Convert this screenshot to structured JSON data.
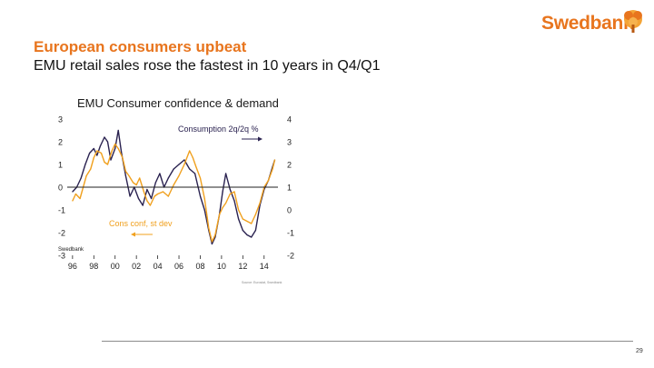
{
  "brand": {
    "name": "Swedbank",
    "color": "#e8751e"
  },
  "slide": {
    "title": "European consumers upbeat",
    "subtitle": "EMU retail sales rose the fastest in 10 years in Q4/Q1",
    "page_number": "29"
  },
  "chart_data": {
    "type": "line",
    "title": "EMU Consumer confidence & demand",
    "source_logo_text": "Swedbank",
    "source_note": "Source: Eurostat, Swedbank",
    "x_tick_labels": [
      "96",
      "98",
      "00",
      "02",
      "04",
      "06",
      "08",
      "10",
      "12",
      "14"
    ],
    "x_range": [
      1995.5,
      2015.3
    ],
    "y_left": {
      "label": "Cons conf, st dev",
      "range": [
        -3,
        3
      ],
      "ticks": [
        "3",
        "2",
        "1",
        "0",
        "-1",
        "-2",
        "-3"
      ]
    },
    "y_right": {
      "label": "Consumption 2q/2q %",
      "range": [
        -2,
        4
      ],
      "ticks": [
        "4",
        "3",
        "2",
        "1",
        "0",
        "-1",
        "-2"
      ]
    },
    "zero_line": 0,
    "series": [
      {
        "name": "Consumption 2q/2q %",
        "axis": "right",
        "color": "#2a2250",
        "points": [
          [
            1996.0,
            0.8
          ],
          [
            1996.4,
            1.0
          ],
          [
            1996.8,
            1.4
          ],
          [
            1997.2,
            2.0
          ],
          [
            1997.6,
            2.5
          ],
          [
            1998.0,
            2.7
          ],
          [
            1998.3,
            2.4
          ],
          [
            1998.6,
            2.8
          ],
          [
            1999.0,
            3.2
          ],
          [
            1999.3,
            3.0
          ],
          [
            1999.6,
            2.2
          ],
          [
            2000.0,
            2.7
          ],
          [
            2000.3,
            3.5
          ],
          [
            2000.6,
            2.5
          ],
          [
            2001.0,
            1.5
          ],
          [
            2001.4,
            0.6
          ],
          [
            2001.8,
            1.0
          ],
          [
            2002.2,
            0.5
          ],
          [
            2002.6,
            0.2
          ],
          [
            2003.0,
            0.9
          ],
          [
            2003.4,
            0.5
          ],
          [
            2003.8,
            1.2
          ],
          [
            2004.2,
            1.6
          ],
          [
            2004.6,
            1.0
          ],
          [
            2005.0,
            1.4
          ],
          [
            2005.5,
            1.8
          ],
          [
            2006.0,
            2.0
          ],
          [
            2006.5,
            2.2
          ],
          [
            2007.0,
            1.8
          ],
          [
            2007.5,
            1.6
          ],
          [
            2008.0,
            0.6
          ],
          [
            2008.4,
            0.0
          ],
          [
            2008.8,
            -0.9
          ],
          [
            2009.1,
            -1.5
          ],
          [
            2009.4,
            -1.2
          ],
          [
            2009.8,
            -0.2
          ],
          [
            2010.1,
            0.8
          ],
          [
            2010.4,
            1.6
          ],
          [
            2010.8,
            0.9
          ],
          [
            2011.2,
            0.4
          ],
          [
            2011.6,
            -0.4
          ],
          [
            2012.0,
            -0.9
          ],
          [
            2012.4,
            -1.1
          ],
          [
            2012.8,
            -1.2
          ],
          [
            2013.2,
            -0.9
          ],
          [
            2013.6,
            0.2
          ],
          [
            2014.0,
            0.9
          ],
          [
            2014.4,
            1.3
          ],
          [
            2014.8,
            1.9
          ],
          [
            2015.0,
            2.2
          ]
        ]
      },
      {
        "name": "Cons conf, st dev",
        "axis": "left",
        "color": "#f0a01e",
        "points": [
          [
            1996.0,
            -0.6
          ],
          [
            1996.3,
            -0.3
          ],
          [
            1996.7,
            -0.5
          ],
          [
            1997.0,
            0.0
          ],
          [
            1997.3,
            0.5
          ],
          [
            1997.7,
            0.8
          ],
          [
            1998.0,
            1.3
          ],
          [
            1998.3,
            1.6
          ],
          [
            1998.7,
            1.5
          ],
          [
            1999.0,
            1.1
          ],
          [
            1999.3,
            1.0
          ],
          [
            1999.7,
            1.6
          ],
          [
            2000.0,
            1.9
          ],
          [
            2000.3,
            1.7
          ],
          [
            2000.7,
            1.3
          ],
          [
            2001.0,
            0.7
          ],
          [
            2001.3,
            0.5
          ],
          [
            2001.7,
            0.2
          ],
          [
            2002.0,
            0.1
          ],
          [
            2002.3,
            0.4
          ],
          [
            2002.7,
            -0.2
          ],
          [
            2003.0,
            -0.6
          ],
          [
            2003.3,
            -0.8
          ],
          [
            2003.7,
            -0.4
          ],
          [
            2004.0,
            -0.3
          ],
          [
            2004.5,
            -0.2
          ],
          [
            2005.0,
            -0.4
          ],
          [
            2005.5,
            0.1
          ],
          [
            2006.0,
            0.5
          ],
          [
            2006.5,
            1.0
          ],
          [
            2007.0,
            1.6
          ],
          [
            2007.3,
            1.3
          ],
          [
            2007.6,
            0.9
          ],
          [
            2008.0,
            0.4
          ],
          [
            2008.4,
            -0.5
          ],
          [
            2008.8,
            -1.8
          ],
          [
            2009.1,
            -2.4
          ],
          [
            2009.4,
            -2.1
          ],
          [
            2009.8,
            -1.2
          ],
          [
            2010.1,
            -0.9
          ],
          [
            2010.4,
            -0.7
          ],
          [
            2010.8,
            -0.3
          ],
          [
            2011.2,
            -0.2
          ],
          [
            2011.6,
            -1.0
          ],
          [
            2012.0,
            -1.4
          ],
          [
            2012.4,
            -1.5
          ],
          [
            2012.8,
            -1.6
          ],
          [
            2013.2,
            -1.2
          ],
          [
            2013.6,
            -0.7
          ],
          [
            2014.0,
            0.0
          ],
          [
            2014.4,
            0.3
          ],
          [
            2014.8,
            0.8
          ],
          [
            2015.0,
            1.2
          ]
        ]
      }
    ]
  }
}
